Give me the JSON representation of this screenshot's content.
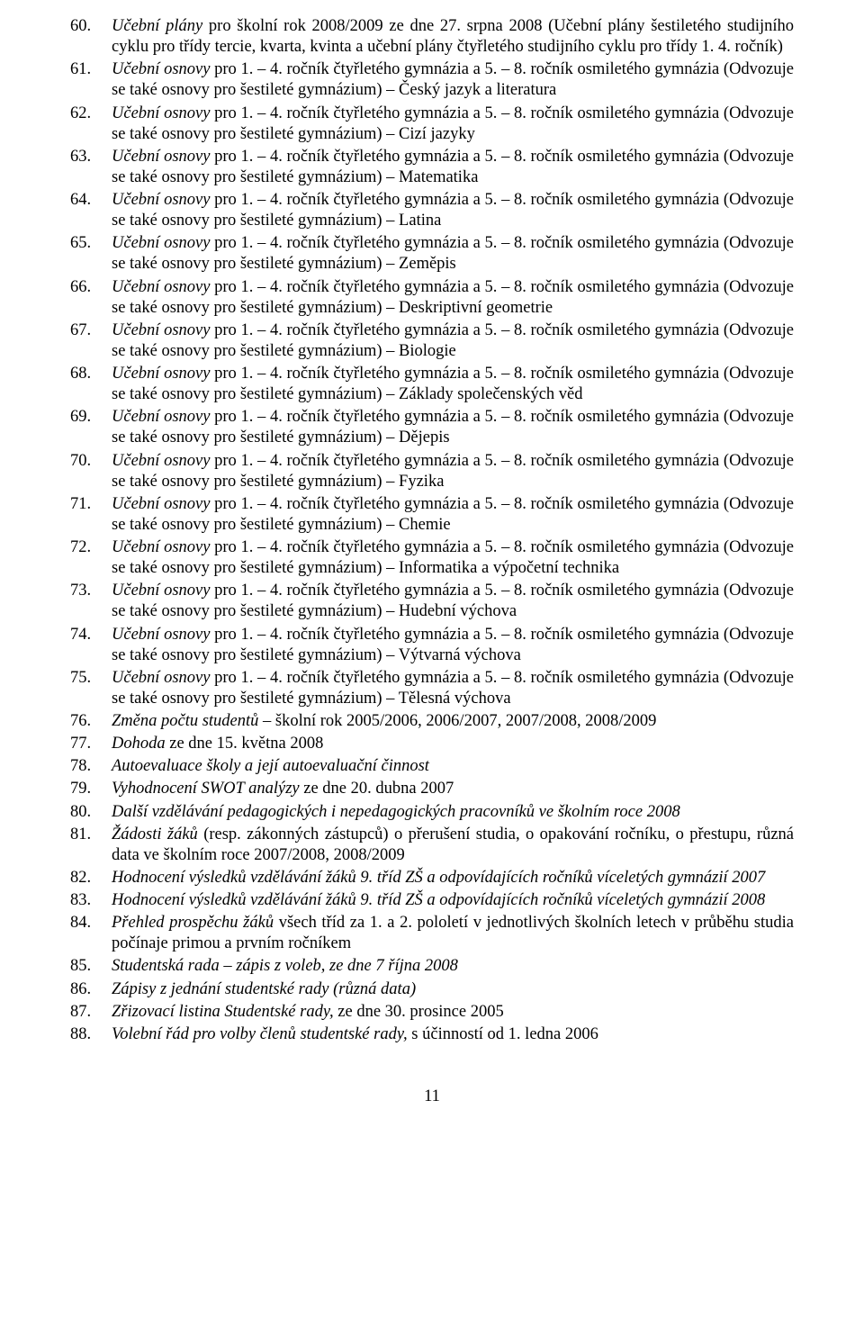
{
  "page_number": "11",
  "items": [
    {
      "n": "60.",
      "segments": [
        {
          "text": "Učební plány",
          "italic": true
        },
        {
          "text": " pro školní rok 2008/2009 ze dne 27. srpna 2008 (Učební plány šestiletého studijního cyklu pro třídy tercie, kvarta, kvinta a učební plány čtyřletého studijního cyklu pro třídy 1. 4. ročník)"
        }
      ]
    },
    {
      "n": "61.",
      "segments": [
        {
          "text": "Učební osnovy",
          "italic": true
        },
        {
          "text": " pro 1. – 4. ročník čtyřletého gymnázia a 5. – 8. ročník osmiletého gymnázia (Odvozuje se také osnovy pro šestileté gymnázium) – Český jazyk a literatura"
        }
      ]
    },
    {
      "n": "62.",
      "segments": [
        {
          "text": "Učební osnovy",
          "italic": true
        },
        {
          "text": " pro 1. – 4. ročník čtyřletého gymnázia a 5. – 8. ročník osmiletého gymnázia (Odvozuje se také osnovy pro šestileté gymnázium) – Cizí jazyky"
        }
      ]
    },
    {
      "n": "63.",
      "segments": [
        {
          "text": "Učební osnovy",
          "italic": true
        },
        {
          "text": " pro 1. – 4. ročník čtyřletého gymnázia a 5. – 8. ročník osmiletého gymnázia (Odvozuje se také osnovy pro šestileté gymnázium) – Matematika"
        }
      ]
    },
    {
      "n": "64.",
      "segments": [
        {
          "text": "Učební osnovy",
          "italic": true
        },
        {
          "text": " pro 1. – 4. ročník čtyřletého gymnázia a 5. – 8. ročník osmiletého gymnázia (Odvozuje se také osnovy pro šestileté gymnázium) – Latina"
        }
      ]
    },
    {
      "n": "65.",
      "segments": [
        {
          "text": "Učební osnovy",
          "italic": true
        },
        {
          "text": " pro 1. – 4. ročník čtyřletého gymnázia a 5. – 8. ročník osmiletého gymnázia (Odvozuje se také osnovy pro šestileté gymnázium) – Zeměpis"
        }
      ]
    },
    {
      "n": "66.",
      "segments": [
        {
          "text": "Učební osnovy",
          "italic": true
        },
        {
          "text": " pro 1. – 4. ročník čtyřletého gymnázia a 5. – 8. ročník osmiletého gymnázia (Odvozuje se také osnovy pro šestileté gymnázium) – Deskriptivní geometrie"
        }
      ]
    },
    {
      "n": "67.",
      "segments": [
        {
          "text": "Učební osnovy",
          "italic": true
        },
        {
          "text": " pro 1. – 4. ročník čtyřletého gymnázia a 5. – 8. ročník osmiletého gymnázia (Odvozuje se také osnovy pro šestileté gymnázium) – Biologie"
        }
      ]
    },
    {
      "n": "68.",
      "segments": [
        {
          "text": "Učební osnovy",
          "italic": true
        },
        {
          "text": " pro 1. – 4. ročník čtyřletého gymnázia a 5. – 8. ročník osmiletého gymnázia (Odvozuje se také osnovy pro šestileté gymnázium) – Základy společenských věd"
        }
      ]
    },
    {
      "n": "69.",
      "segments": [
        {
          "text": "Učební osnovy",
          "italic": true
        },
        {
          "text": " pro 1. – 4. ročník čtyřletého gymnázia a 5. – 8. ročník osmiletého gymnázia (Odvozuje se také osnovy pro šestileté gymnázium) – Dějepis"
        }
      ]
    },
    {
      "n": "70.",
      "segments": [
        {
          "text": "Učební osnovy",
          "italic": true
        },
        {
          "text": " pro 1. – 4. ročník čtyřletého gymnázia a 5. – 8. ročník osmiletého gymnázia (Odvozuje se také osnovy pro šestileté gymnázium) – Fyzika"
        }
      ]
    },
    {
      "n": "71.",
      "segments": [
        {
          "text": "Učební osnovy",
          "italic": true
        },
        {
          "text": " pro 1. – 4. ročník čtyřletého gymnázia a 5. – 8. ročník osmiletého gymnázia (Odvozuje se také osnovy pro šestileté gymnázium) – Chemie"
        }
      ]
    },
    {
      "n": "72.",
      "segments": [
        {
          "text": "Učební osnovy",
          "italic": true
        },
        {
          "text": " pro 1. – 4. ročník čtyřletého gymnázia a 5. – 8. ročník osmiletého gymnázia (Odvozuje se také osnovy pro šestileté gymnázium) – Informatika a výpočetní technika"
        }
      ]
    },
    {
      "n": "73.",
      "segments": [
        {
          "text": "Učební osnovy",
          "italic": true
        },
        {
          "text": " pro 1. – 4. ročník čtyřletého gymnázia a 5. – 8. ročník osmiletého gymnázia (Odvozuje se také osnovy pro šestileté gymnázium) – Hudební výchova"
        }
      ]
    },
    {
      "n": "74.",
      "segments": [
        {
          "text": "Učební osnovy",
          "italic": true
        },
        {
          "text": " pro 1. – 4. ročník čtyřletého gymnázia a 5. – 8. ročník osmiletého gymnázia (Odvozuje se také osnovy pro šestileté gymnázium) – Výtvarná výchova"
        }
      ]
    },
    {
      "n": "75.",
      "segments": [
        {
          "text": "Učební osnovy",
          "italic": true
        },
        {
          "text": " pro 1. – 4. ročník čtyřletého gymnázia a 5. – 8. ročník osmiletého gymnázia (Odvozuje se také osnovy pro šestileté gymnázium) – Tělesná výchova"
        }
      ]
    },
    {
      "n": "76.",
      "segments": [
        {
          "text": "Změna počtu studentů",
          "italic": true
        },
        {
          "text": " – školní rok 2005/2006, 2006/2007, 2007/2008, 2008/2009"
        }
      ]
    },
    {
      "n": "77.",
      "segments": [
        {
          "text": "Dohoda",
          "italic": true
        },
        {
          "text": " ze dne 15. května 2008"
        }
      ]
    },
    {
      "n": "78.",
      "segments": [
        {
          "text": "Autoevaluace školy a její autoevaluační činnost",
          "italic": true
        }
      ]
    },
    {
      "n": "79.",
      "segments": [
        {
          "text": "Vyhodnocení SWOT analýzy",
          "italic": true
        },
        {
          "text": " ze dne 20. dubna 2007"
        }
      ]
    },
    {
      "n": "80.",
      "segments": [
        {
          "text": "Další vzdělávání pedagogických i nepedagogických pracovníků ve školním roce 2008",
          "italic": true
        }
      ]
    },
    {
      "n": "81.",
      "segments": [
        {
          "text": "Žádosti žáků",
          "italic": true
        },
        {
          "text": " (resp. zákonných zástupců) o přerušení studia, o opakování ročníku, o přestupu, různá data ve školním roce 2007/2008, 2008/2009"
        }
      ]
    },
    {
      "n": "82.",
      "segments": [
        {
          "text": "Hodnocení výsledků vzdělávání žáků 9. tříd ZŠ a odpovídajících ročníků víceletých gymnázií 2007",
          "italic": true
        }
      ]
    },
    {
      "n": "83.",
      "segments": [
        {
          "text": "Hodnocení výsledků vzdělávání žáků 9. tříd ZŠ a odpovídajících ročníků víceletých gymnázií 2008",
          "italic": true
        }
      ]
    },
    {
      "n": "84.",
      "segments": [
        {
          "text": "Přehled prospěchu žáků",
          "italic": true
        },
        {
          "text": " všech tříd za 1. a 2. pololetí v jednotlivých školních letech v průběhu studia počínaje primou a prvním ročníkem"
        }
      ]
    },
    {
      "n": "85.",
      "segments": [
        {
          "text": "Studentská rada – zápis z voleb, ze dne 7 října 2008",
          "italic": true
        }
      ]
    },
    {
      "n": "86.",
      "segments": [
        {
          "text": "Zápisy z jednání studentské rady (různá data)",
          "italic": true
        }
      ]
    },
    {
      "n": "87.",
      "segments": [
        {
          "text": "Zřizovací listina Studentské rady,",
          "italic": true
        },
        {
          "text": " ze dne 30. prosince 2005"
        }
      ]
    },
    {
      "n": "88.",
      "segments": [
        {
          "text": "Volební řád pro volby členů studentské rady,",
          "italic": true
        },
        {
          "text": " s účinností od 1. ledna 2006"
        }
      ]
    }
  ]
}
